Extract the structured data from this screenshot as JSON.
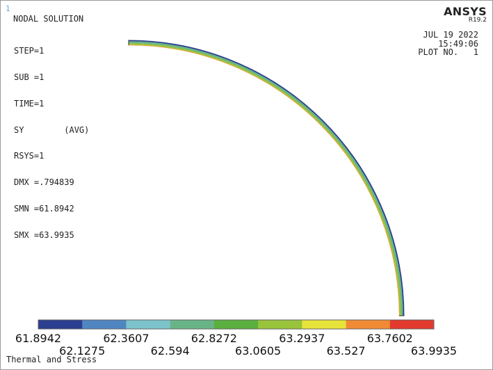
{
  "window_number": "1",
  "plot_title": "NODAL SOLUTION",
  "info_lines": [
    "STEP=1",
    "SUB =1",
    "TIME=1",
    "SY        (AVG)",
    "RSYS=1",
    "DMX =.794839",
    "SMN =61.8942",
    "SMX =63.9935"
  ],
  "logo": {
    "name": "ANSYS",
    "version": "R19.2"
  },
  "date_block": {
    "date": "JUL 19 2022",
    "time": "15:49:06",
    "plot_no": "PLOT NO.   1"
  },
  "footer_title": "Thermal and Stress",
  "legend": {
    "colors": [
      "#2c3e8f",
      "#4f86c2",
      "#7cc3cb",
      "#69b487",
      "#5aaf3f",
      "#98c43a",
      "#e6e33a",
      "#f08a34",
      "#e23a2e"
    ],
    "labels": [
      "61.8942",
      "62.1275",
      "62.3607",
      "62.594",
      "62.8272",
      "63.0605",
      "63.2937",
      "63.527",
      "63.7602",
      "63.9935"
    ]
  },
  "contour_colors": {
    "outer": "#2c3e8f",
    "mid": "#69b487",
    "inner": "#98c43a",
    "edge": "#e6a23a"
  }
}
